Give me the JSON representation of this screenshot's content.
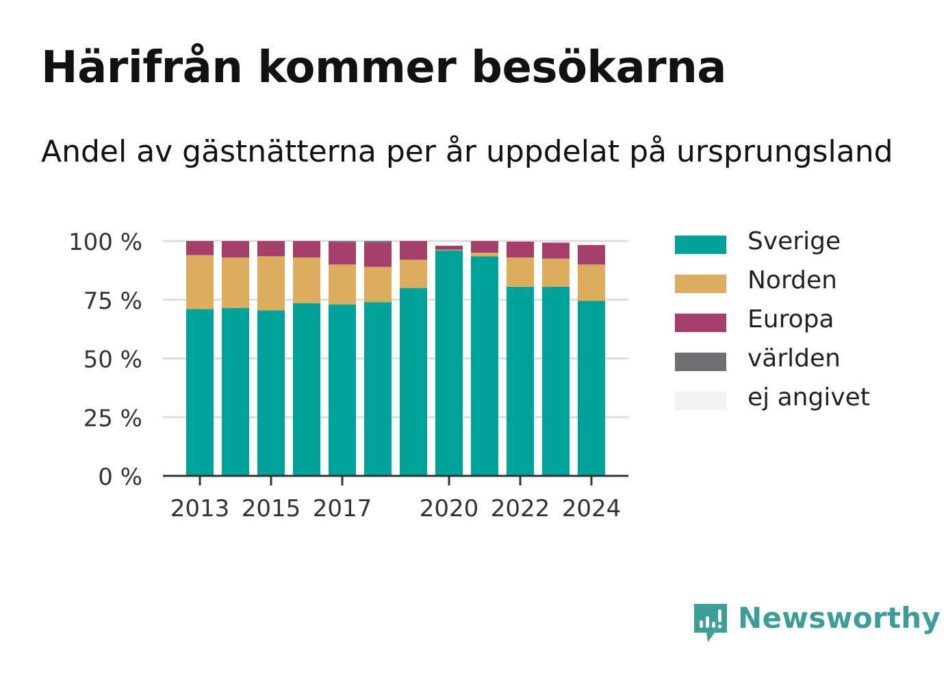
{
  "header": {
    "title": "Härifrån kommer besökarna",
    "subtitle": "Andel av gästnätterna per år uppdelat på ursprungsland"
  },
  "logo": {
    "text": "Newsworthy",
    "icon": "newsworthy-logo-icon",
    "color": "#3d9e98"
  },
  "chart_data": {
    "type": "bar",
    "stacked": true,
    "x": [
      2013,
      2014,
      2015,
      2016,
      2017,
      2018,
      2019,
      2020,
      2021,
      2022,
      2023,
      2024
    ],
    "xticks": [
      "2013",
      "2015",
      "2017",
      "2020",
      "2022",
      "2024"
    ],
    "ylim": [
      0,
      100
    ],
    "yticks": [
      "0 %",
      "25 %",
      "50 %",
      "75 %",
      "100 %"
    ],
    "yticks_values": [
      0,
      25,
      50,
      75,
      100
    ],
    "grid": true,
    "legend_position": "right",
    "series": [
      {
        "name": "Sverige",
        "color": "#00a39a",
        "values": [
          71,
          71.5,
          70.5,
          73.5,
          73,
          74,
          80,
          96,
          93.5,
          80.5,
          80.5,
          74.5
        ]
      },
      {
        "name": "Norden",
        "color": "#dbad5c",
        "values": [
          23,
          21.5,
          23,
          19.5,
          17,
          15,
          12,
          0.3,
          1.5,
          12.5,
          12,
          15.5
        ]
      },
      {
        "name": "Europa",
        "color": "#a63e6b",
        "values": [
          6,
          7,
          6.5,
          7,
          9.5,
          10.3,
          8,
          1.7,
          5,
          6.8,
          6.8,
          8.3
        ]
      },
      {
        "name": "världen",
        "color": "#6e6e73",
        "values": [
          0,
          0,
          0,
          0,
          0.5,
          0.7,
          0,
          0,
          0,
          0,
          0,
          0
        ]
      },
      {
        "name": "ej angivet",
        "color": "#f4f3f1",
        "values": [
          0,
          0,
          0,
          0,
          0,
          0,
          0,
          0.5,
          0,
          0.2,
          0,
          0
        ]
      }
    ]
  }
}
